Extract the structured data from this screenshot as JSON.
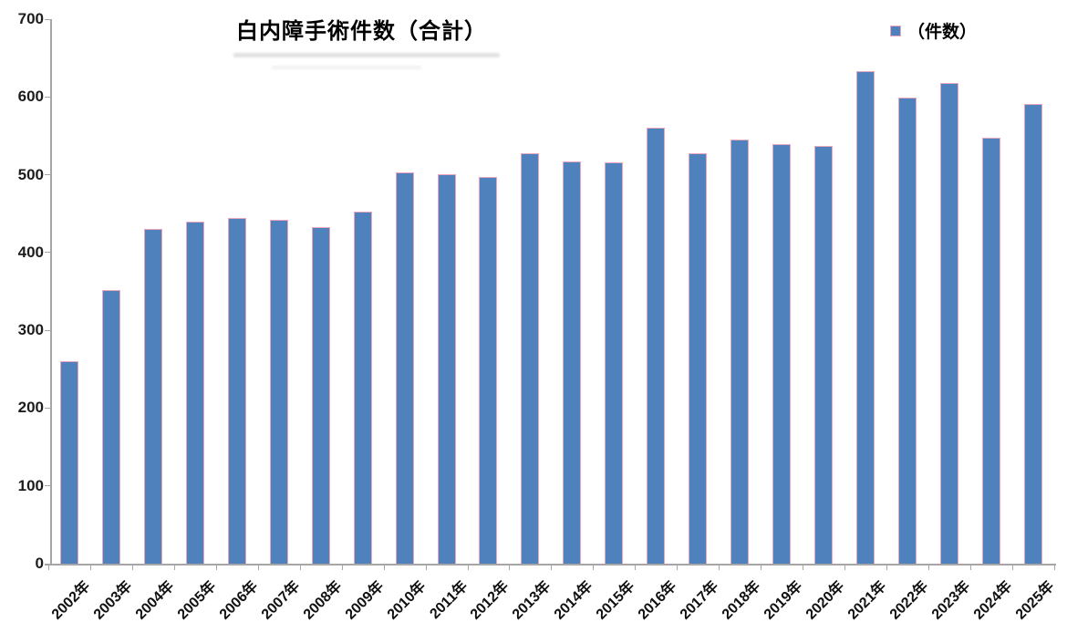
{
  "chart_data": {
    "type": "bar",
    "title": "白内障手術件数（合計）",
    "legend": "（件数）",
    "legend_position": "top-right",
    "xlabel": "",
    "ylabel": "",
    "ylim": [
      0,
      700
    ],
    "yticks": [
      0,
      100,
      200,
      300,
      400,
      500,
      600,
      700
    ],
    "grid": false,
    "categories": [
      "2002年",
      "2003年",
      "2004年",
      "2005年",
      "2006年",
      "2007年",
      "2008年",
      "2009年",
      "2010年",
      "2011年",
      "2012年",
      "2013年",
      "2014年",
      "2015年",
      "2016年",
      "2017年",
      "2018年",
      "2019年",
      "2020年",
      "2021年",
      "2022年",
      "2023年",
      "2024年",
      "2025年"
    ],
    "values": [
      260,
      352,
      430,
      440,
      444,
      442,
      433,
      453,
      503,
      501,
      497,
      528,
      517,
      516,
      560,
      528,
      545,
      539,
      537,
      633,
      599,
      618,
      548,
      591
    ],
    "colors": {
      "bar_fill": "#4f81bd",
      "bar_border": "#eaa6bd",
      "axis": "#a6a6a6",
      "tick_text": "#1c1c1c"
    }
  }
}
